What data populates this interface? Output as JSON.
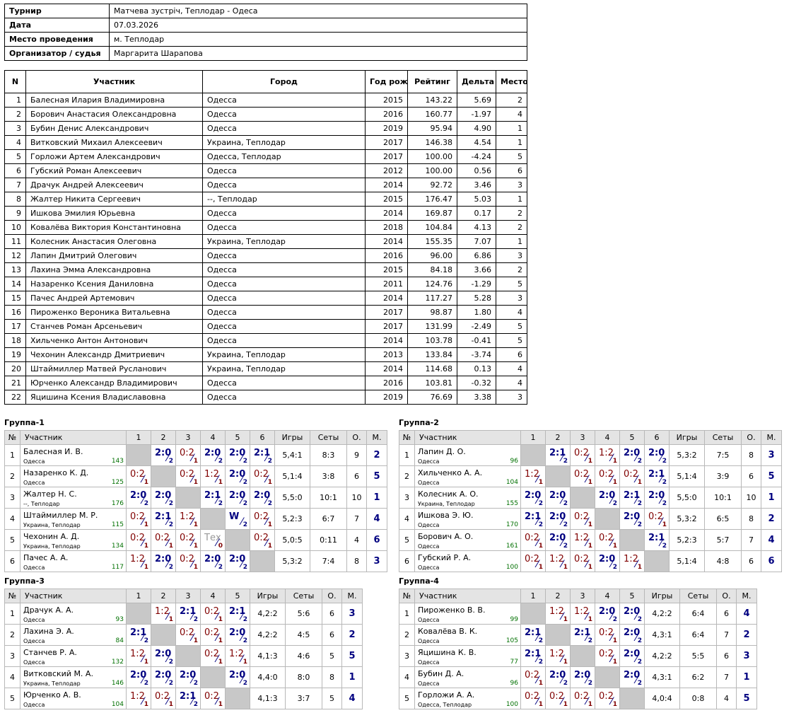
{
  "info": [
    {
      "label": "Турнир",
      "value": "Матчева зустріч, Теплодар - Одеса"
    },
    {
      "label": "Дата",
      "value": "07.03.2026"
    },
    {
      "label": "Место проведения",
      "value": "м. Теплодар"
    },
    {
      "label": "Организатор / судья",
      "value": "Маргарита Шарапова"
    }
  ],
  "participants": {
    "header": [
      "N",
      "Участник",
      "Город",
      "Год рожд.",
      "Рейтинг",
      "Дельта",
      "Место"
    ],
    "rows": [
      [
        "1",
        "Балесная Илария Владимировна",
        "Одесса",
        "2015",
        "143.22",
        "5.69",
        "2"
      ],
      [
        "2",
        "Борович Анастасия Олександровна",
        "Одесса",
        "2016",
        "160.77",
        "-1.97",
        "4"
      ],
      [
        "3",
        "Бубин Денис Александрович",
        "Одесса",
        "2019",
        "95.94",
        "4.90",
        "1"
      ],
      [
        "4",
        "Витковский Михаил Алексеевич",
        "Украина, Теплодар",
        "2017",
        "146.38",
        "4.54",
        "1"
      ],
      [
        "5",
        "Горложи Артем Александрович",
        "Одесса, Теплодар",
        "2017",
        "100.00",
        "-4.24",
        "5"
      ],
      [
        "6",
        "Губский Роман Алексеевич",
        "Одесса",
        "2012",
        "100.00",
        "0.56",
        "6"
      ],
      [
        "7",
        "Драчук Андрей Алексеевич",
        "Одесса",
        "2014",
        "92.72",
        "3.46",
        "3"
      ],
      [
        "8",
        "Жалтер Никита Сергеевич",
        "--, Теплодар",
        "2015",
        "176.47",
        "5.03",
        "1"
      ],
      [
        "9",
        "Ишкова Эмилия Юрьевна",
        "Одесса",
        "2014",
        "169.87",
        "0.17",
        "2"
      ],
      [
        "10",
        "Ковалёва Виктория Константиновна",
        "Одесса",
        "2018",
        "104.84",
        "4.13",
        "2"
      ],
      [
        "11",
        "Колесник Анастасия Олеговна",
        "Украина, Теплодар",
        "2014",
        "155.35",
        "7.07",
        "1"
      ],
      [
        "12",
        "Лапин Дмитрий Олегович",
        "Одесса",
        "2016",
        "96.00",
        "6.86",
        "3"
      ],
      [
        "13",
        "Лахина Эмма Александровна",
        "Одесса",
        "2015",
        "84.18",
        "3.66",
        "2"
      ],
      [
        "14",
        "Назаренко Ксения Даниловна",
        "Одесса",
        "2011",
        "124.76",
        "-1.29",
        "5"
      ],
      [
        "15",
        "Пачес Андрей Артемович",
        "Одесса",
        "2014",
        "117.27",
        "5.28",
        "3"
      ],
      [
        "16",
        "Пироженко Вероника Витальевна",
        "Одесса",
        "2017",
        "98.87",
        "1.80",
        "4"
      ],
      [
        "17",
        "Станчев Роман Арсеньевич",
        "Одесса",
        "2017",
        "131.99",
        "-2.49",
        "5"
      ],
      [
        "18",
        "Хильченко Антон Антонович",
        "Одесса",
        "2014",
        "103.78",
        "-0.41",
        "5"
      ],
      [
        "19",
        "Чехонин Александр Дмитриевич",
        "Украина, Теплодар",
        "2013",
        "133.84",
        "-3.74",
        "6"
      ],
      [
        "20",
        "Штаймиллер Матвей Русланович",
        "Украина, Теплодар",
        "2014",
        "114.68",
        "0.13",
        "4"
      ],
      [
        "21",
        "Юрченко Александр Владимирович",
        "Одесса",
        "2016",
        "103.81",
        "-0.32",
        "4"
      ],
      [
        "22",
        "Яцишина Ксения Владиславовна",
        "Одесса",
        "2019",
        "76.69",
        "3.38",
        "3"
      ]
    ]
  },
  "groups": [
    {
      "title": "Группа-1",
      "header": [
        "№",
        "Участник",
        "1",
        "2",
        "3",
        "4",
        "5",
        "6",
        "Игры",
        "Сеты",
        "О.",
        "М."
      ],
      "rows": [
        {
          "n": "1",
          "name": "Балесная И. В.",
          "city": "Одесса",
          "rating": "143",
          "results": [
            null,
            {
              "score": "2:0",
              "pts": "2"
            },
            {
              "score": "0:2",
              "pts": "1"
            },
            {
              "score": "2:0",
              "pts": "2"
            },
            {
              "score": "2:0",
              "pts": "2"
            },
            {
              "score": "2:1",
              "pts": "2"
            }
          ],
          "games": "5,4:1",
          "sets": "8:3",
          "points": "9",
          "place": "2"
        },
        {
          "n": "2",
          "name": "Назаренко К. Д.",
          "city": "Одесса",
          "rating": "125",
          "results": [
            {
              "score": "0:2",
              "pts": "1"
            },
            null,
            {
              "score": "0:2",
              "pts": "1"
            },
            {
              "score": "1:2",
              "pts": "1"
            },
            {
              "score": "2:0",
              "pts": "2"
            },
            {
              "score": "0:2",
              "pts": "1"
            }
          ],
          "games": "5,1:4",
          "sets": "3:8",
          "points": "6",
          "place": "5"
        },
        {
          "n": "3",
          "name": "Жалтер Н. С.",
          "city": "--, Теплодар",
          "rating": "176",
          "results": [
            {
              "score": "2:0",
              "pts": "2"
            },
            {
              "score": "2:0",
              "pts": "2"
            },
            null,
            {
              "score": "2:1",
              "pts": "2"
            },
            {
              "score": "2:0",
              "pts": "2"
            },
            {
              "score": "2:0",
              "pts": "2"
            }
          ],
          "games": "5,5:0",
          "sets": "10:1",
          "points": "10",
          "place": "1"
        },
        {
          "n": "4",
          "name": "Штаймиллер М. Р.",
          "city": "Украина, Теплодар",
          "rating": "115",
          "results": [
            {
              "score": "0:2",
              "pts": "1"
            },
            {
              "score": "2:1",
              "pts": "2"
            },
            {
              "score": "1:2",
              "pts": "1"
            },
            null,
            {
              "score": "W",
              "pts": "2"
            },
            {
              "score": "0:2",
              "pts": "1"
            }
          ],
          "games": "5,2:3",
          "sets": "6:7",
          "points": "7",
          "place": "4"
        },
        {
          "n": "5",
          "name": "Чехонин А. Д.",
          "city": "Украина, Теплодар",
          "rating": "134",
          "results": [
            {
              "score": "0:2",
              "pts": "1"
            },
            {
              "score": "0:2",
              "pts": "1"
            },
            {
              "score": "0:2",
              "pts": "1"
            },
            {
              "score": "Тех",
              "pts": "0"
            },
            null,
            {
              "score": "0:2",
              "pts": "1"
            }
          ],
          "games": "5,0:5",
          "sets": "0:11",
          "points": "4",
          "place": "6"
        },
        {
          "n": "6",
          "name": "Пачес А. А.",
          "city": "Одесса",
          "rating": "117",
          "results": [
            {
              "score": "1:2",
              "pts": "1"
            },
            {
              "score": "2:0",
              "pts": "2"
            },
            {
              "score": "0:2",
              "pts": "1"
            },
            {
              "score": "2:0",
              "pts": "2"
            },
            {
              "score": "2:0",
              "pts": "2"
            },
            null
          ],
          "games": "5,3:2",
          "sets": "7:4",
          "points": "8",
          "place": "3"
        }
      ]
    },
    {
      "title": "Группа-2",
      "header": [
        "№",
        "Участник",
        "1",
        "2",
        "3",
        "4",
        "5",
        "6",
        "Игры",
        "Сеты",
        "О.",
        "М."
      ],
      "rows": [
        {
          "n": "1",
          "name": "Лапин Д. О.",
          "city": "Одесса",
          "rating": "96",
          "results": [
            null,
            {
              "score": "2:1",
              "pts": "2"
            },
            {
              "score": "0:2",
              "pts": "1"
            },
            {
              "score": "1:2",
              "pts": "1"
            },
            {
              "score": "2:0",
              "pts": "2"
            },
            {
              "score": "2:0",
              "pts": "2"
            }
          ],
          "games": "5,3:2",
          "sets": "7:5",
          "points": "8",
          "place": "3"
        },
        {
          "n": "2",
          "name": "Хильченко А. А.",
          "city": "Одесса",
          "rating": "104",
          "results": [
            {
              "score": "1:2",
              "pts": "1"
            },
            null,
            {
              "score": "0:2",
              "pts": "1"
            },
            {
              "score": "0:2",
              "pts": "1"
            },
            {
              "score": "0:2",
              "pts": "1"
            },
            {
              "score": "2:1",
              "pts": "2"
            }
          ],
          "games": "5,1:4",
          "sets": "3:9",
          "points": "6",
          "place": "5"
        },
        {
          "n": "3",
          "name": "Колесник А. О.",
          "city": "Украина, Теплодар",
          "rating": "155",
          "results": [
            {
              "score": "2:0",
              "pts": "2"
            },
            {
              "score": "2:0",
              "pts": "2"
            },
            null,
            {
              "score": "2:0",
              "pts": "2"
            },
            {
              "score": "2:1",
              "pts": "2"
            },
            {
              "score": "2:0",
              "pts": "2"
            }
          ],
          "games": "5,5:0",
          "sets": "10:1",
          "points": "10",
          "place": "1"
        },
        {
          "n": "4",
          "name": "Ишкова Э. Ю.",
          "city": "Одесса",
          "rating": "170",
          "results": [
            {
              "score": "2:1",
              "pts": "2"
            },
            {
              "score": "2:0",
              "pts": "2"
            },
            {
              "score": "0:2",
              "pts": "1"
            },
            null,
            {
              "score": "2:0",
              "pts": "2"
            },
            {
              "score": "0:2",
              "pts": "1"
            }
          ],
          "games": "5,3:2",
          "sets": "6:5",
          "points": "8",
          "place": "2"
        },
        {
          "n": "5",
          "name": "Борович А. О.",
          "city": "Одесса",
          "rating": "161",
          "results": [
            {
              "score": "0:2",
              "pts": "1"
            },
            {
              "score": "2:0",
              "pts": "2"
            },
            {
              "score": "1:2",
              "pts": "1"
            },
            {
              "score": "0:2",
              "pts": "1"
            },
            null,
            {
              "score": "2:1",
              "pts": "2"
            }
          ],
          "games": "5,2:3",
          "sets": "5:7",
          "points": "7",
          "place": "4"
        },
        {
          "n": "6",
          "name": "Губский Р. А.",
          "city": "Одесса",
          "rating": "100",
          "results": [
            {
              "score": "0:2",
              "pts": "1"
            },
            {
              "score": "1:2",
              "pts": "1"
            },
            {
              "score": "0:2",
              "pts": "1"
            },
            {
              "score": "2:0",
              "pts": "2"
            },
            {
              "score": "1:2",
              "pts": "1"
            },
            null
          ],
          "games": "5,1:4",
          "sets": "4:8",
          "points": "6",
          "place": "6"
        }
      ]
    },
    {
      "title": "Группа-3",
      "header": [
        "№",
        "Участник",
        "1",
        "2",
        "3",
        "4",
        "5",
        "Игры",
        "Сеты",
        "О.",
        "М."
      ],
      "rows": [
        {
          "n": "1",
          "name": "Драчук А. А.",
          "city": "Одесса",
          "rating": "93",
          "results": [
            null,
            {
              "score": "1:2",
              "pts": "1"
            },
            {
              "score": "2:1",
              "pts": "2"
            },
            {
              "score": "0:2",
              "pts": "1"
            },
            {
              "score": "2:1",
              "pts": "2"
            }
          ],
          "games": "4,2:2",
          "sets": "5:6",
          "points": "6",
          "place": "3"
        },
        {
          "n": "2",
          "name": "Лахина Э. А.",
          "city": "Одесса",
          "rating": "84",
          "results": [
            {
              "score": "2:1",
              "pts": "2"
            },
            null,
            {
              "score": "0:2",
              "pts": "1"
            },
            {
              "score": "0:2",
              "pts": "1"
            },
            {
              "score": "2:0",
              "pts": "2"
            }
          ],
          "games": "4,2:2",
          "sets": "4:5",
          "points": "6",
          "place": "2"
        },
        {
          "n": "3",
          "name": "Станчев Р. А.",
          "city": "Одесса",
          "rating": "132",
          "results": [
            {
              "score": "1:2",
              "pts": "1"
            },
            {
              "score": "2:0",
              "pts": "2"
            },
            null,
            {
              "score": "0:2",
              "pts": "1"
            },
            {
              "score": "1:2",
              "pts": "1"
            }
          ],
          "games": "4,1:3",
          "sets": "4:6",
          "points": "5",
          "place": "5"
        },
        {
          "n": "4",
          "name": "Витковский М. А.",
          "city": "Украина, Теплодар",
          "rating": "146",
          "results": [
            {
              "score": "2:0",
              "pts": "2"
            },
            {
              "score": "2:0",
              "pts": "2"
            },
            {
              "score": "2:0",
              "pts": "2"
            },
            null,
            {
              "score": "2:0",
              "pts": "2"
            }
          ],
          "games": "4,4:0",
          "sets": "8:0",
          "points": "8",
          "place": "1"
        },
        {
          "n": "5",
          "name": "Юрченко А. В.",
          "city": "Одесса",
          "rating": "104",
          "results": [
            {
              "score": "1:2",
              "pts": "1"
            },
            {
              "score": "0:2",
              "pts": "1"
            },
            {
              "score": "2:1",
              "pts": "2"
            },
            {
              "score": "0:2",
              "pts": "1"
            },
            null
          ],
          "games": "4,1:3",
          "sets": "3:7",
          "points": "5",
          "place": "4"
        }
      ]
    },
    {
      "title": "Группа-4",
      "header": [
        "№",
        "Участник",
        "1",
        "2",
        "3",
        "4",
        "5",
        "Игры",
        "Сеты",
        "О.",
        "М."
      ],
      "rows": [
        {
          "n": "1",
          "name": "Пироженко В. В.",
          "city": "Одесса",
          "rating": "99",
          "results": [
            null,
            {
              "score": "1:2",
              "pts": "1"
            },
            {
              "score": "1:2",
              "pts": "1"
            },
            {
              "score": "2:0",
              "pts": "2"
            },
            {
              "score": "2:0",
              "pts": "2"
            }
          ],
          "games": "4,2:2",
          "sets": "6:4",
          "points": "6",
          "place": "4"
        },
        {
          "n": "2",
          "name": "Ковалёва В. К.",
          "city": "Одесса",
          "rating": "105",
          "results": [
            {
              "score": "2:1",
              "pts": "2"
            },
            null,
            {
              "score": "2:1",
              "pts": "2"
            },
            {
              "score": "0:2",
              "pts": "1"
            },
            {
              "score": "2:0",
              "pts": "2"
            }
          ],
          "games": "4,3:1",
          "sets": "6:4",
          "points": "7",
          "place": "2"
        },
        {
          "n": "3",
          "name": "Яцишина К. В.",
          "city": "Одесса",
          "rating": "77",
          "results": [
            {
              "score": "2:1",
              "pts": "2"
            },
            {
              "score": "1:2",
              "pts": "1"
            },
            null,
            {
              "score": "0:2",
              "pts": "1"
            },
            {
              "score": "2:0",
              "pts": "2"
            }
          ],
          "games": "4,2:2",
          "sets": "5:5",
          "points": "6",
          "place": "3"
        },
        {
          "n": "4",
          "name": "Бубин Д. А.",
          "city": "Одесса",
          "rating": "96",
          "results": [
            {
              "score": "0:2",
              "pts": "1"
            },
            {
              "score": "2:0",
              "pts": "2"
            },
            {
              "score": "2:0",
              "pts": "2"
            },
            null,
            {
              "score": "2:0",
              "pts": "2"
            }
          ],
          "games": "4,3:1",
          "sets": "6:2",
          "points": "7",
          "place": "1"
        },
        {
          "n": "5",
          "name": "Горложи А. А.",
          "city": "Одесса, Теплодар",
          "rating": "100",
          "results": [
            {
              "score": "0:2",
              "pts": "1"
            },
            {
              "score": "0:2",
              "pts": "1"
            },
            {
              "score": "0:2",
              "pts": "1"
            },
            {
              "score": "0:2",
              "pts": "1"
            },
            null
          ],
          "games": "4,0:4",
          "sets": "0:8",
          "points": "4",
          "place": "5"
        }
      ]
    }
  ]
}
